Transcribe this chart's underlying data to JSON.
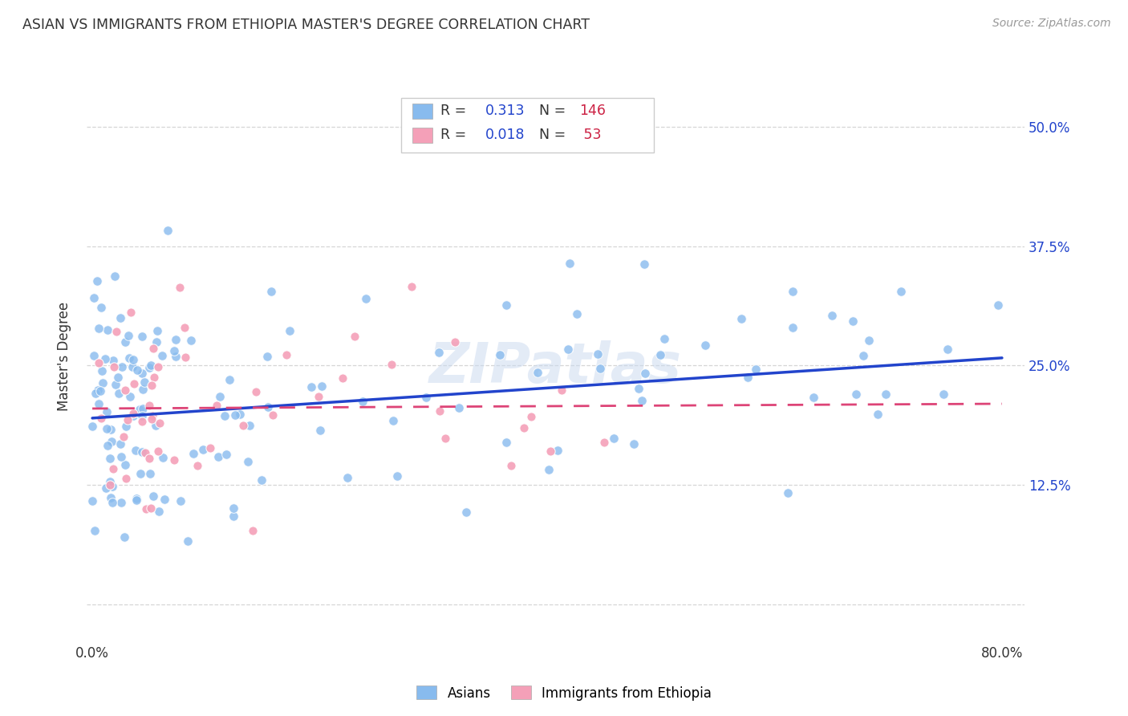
{
  "title": "ASIAN VS IMMIGRANTS FROM ETHIOPIA MASTER'S DEGREE CORRELATION CHART",
  "source": "Source: ZipAtlas.com",
  "ylabel": "Master's Degree",
  "asian_color": "#88bbee",
  "eth_color": "#f4a0b8",
  "trend_asian_color": "#2244cc",
  "trend_eth_color": "#dd4477",
  "watermark": "ZIPatlas",
  "background_color": "#ffffff",
  "grid_color": "#cccccc",
  "legend_R_color": "#2244cc",
  "legend_N_color": "#cc2244",
  "legend_text_color": "#333333",
  "ytick_color": "#2244cc",
  "xlim": [
    -0.005,
    0.82
  ],
  "ylim": [
    -0.04,
    0.56
  ],
  "asian_trend_x0": 0.0,
  "asian_trend_y0": 0.195,
  "asian_trend_x1": 0.8,
  "asian_trend_y1": 0.258,
  "eth_trend_x0": 0.0,
  "eth_trend_y0": 0.205,
  "eth_trend_x1": 0.8,
  "eth_trend_y1": 0.21
}
